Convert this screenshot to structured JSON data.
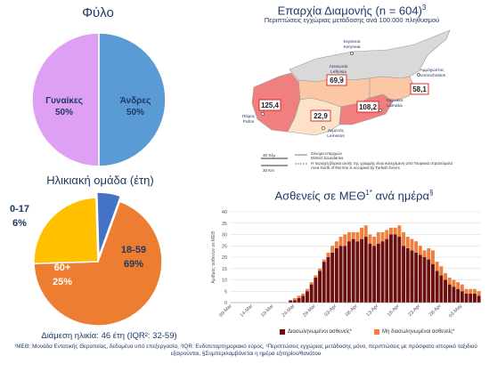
{
  "sex_chart": {
    "title": "Φύλο",
    "chart_data": {
      "type": "pie",
      "title": "Φύλο",
      "slices": [
        {
          "label": "Άνδρες",
          "value": 50,
          "value_label": "50%",
          "color": "#5b9bd5"
        },
        {
          "label": "Γυναίκες",
          "value": 50,
          "value_label": "50%",
          "color": "#dda0f2"
        }
      ]
    }
  },
  "age_chart": {
    "title": "Ηλικιακή ομάδα (έτη)",
    "chart_data": {
      "type": "pie",
      "title": "Ηλικιακή ομάδα (έτη)",
      "slices": [
        {
          "label": "18-59",
          "value": 69,
          "value_label": "69%",
          "color": "#ed7d31"
        },
        {
          "label": "60+",
          "value": 25,
          "value_label": "25%",
          "color": "#ffc000"
        },
        {
          "label": "0-17",
          "value": 6,
          "value_label": "6%",
          "color": "#4472c4"
        }
      ]
    },
    "median_text": "Διάμεση ηλικία: 46 έτη (IQR²: 32-59)"
  },
  "map_panel": {
    "title_main": "Επαρχία Διαμονής (n = 604)",
    "title_sup": "3",
    "subtitle": "Περιπτώσεις εγχώριας μετάδοσης ανά 100.000 πληθυσμού",
    "districts": [
      {
        "name_el": "Κερύνεια",
        "name_en": "Keryneia",
        "value": ""
      },
      {
        "name_el": "Λευκωσία",
        "name_en": "Lefkosia",
        "value": "69,9"
      },
      {
        "name_el": "Αμμόχωστος",
        "name_en": "Ammochostos",
        "value": "58,1"
      },
      {
        "name_el": "Λάρνακα",
        "name_en": "Larnaka",
        "value": "108,2"
      },
      {
        "name_el": "Λεμεσός",
        "name_en": "Lemesos",
        "value": "22,9"
      },
      {
        "name_el": "Πάφος",
        "name_en": "Pafos",
        "value": "125,4"
      }
    ],
    "legend": {
      "boundaries_el": "Σύνορα επαρχιών",
      "boundaries_en": "District boundaries",
      "occupied_el": "Η περιοχή βόρεια αυτής της γραμμής είναι κατεχόμενη από Τουρκικά στρατεύματα",
      "occupied_en": "Area North of this line is occupied by Turkish forces",
      "scale_1": "30 Χλμ",
      "scale_2": "30 Km"
    },
    "colors": {
      "high": "#f08080",
      "mid": "#fbc7a4",
      "low": "#fde2c8",
      "occupied": "#d9d9d9"
    }
  },
  "icu_chart": {
    "title_main": "Ασθενείς σε ΜΕΘ",
    "title_sup1": "1*",
    "title_rest": " ανά ημέρα",
    "title_sup2": "§",
    "chart_data": {
      "type": "bar",
      "stacked": true,
      "ylabel": "Αριθμός ασθενών σε ΜΕΘ",
      "ylim": [
        0,
        40
      ],
      "yticks": [
        0,
        5,
        10,
        15,
        20,
        25,
        30,
        35,
        40
      ],
      "xtick_labels": [
        "09-Mar",
        "14-Mar",
        "19-Mar",
        "24-Mar",
        "29-Mar",
        "03-Apr",
        "08-Apr",
        "13-Apr",
        "18-Apr",
        "23-Apr",
        "28-Apr",
        "03-May"
      ],
      "grid": true,
      "legend_position": "bottom",
      "series": [
        {
          "name": "Διασωληνωμένοι ασθενείς*",
          "color": "#6b0f0f",
          "values": [
            0,
            0,
            0,
            0,
            0,
            0,
            0,
            0,
            0,
            0,
            0,
            0,
            0,
            0,
            1,
            1,
            2,
            3,
            5,
            8,
            11,
            14,
            18,
            20,
            22,
            24,
            25,
            25,
            27,
            28,
            27,
            28,
            29,
            26,
            25,
            26,
            27,
            28,
            30,
            30,
            29,
            25,
            24,
            23,
            22,
            21,
            20,
            19,
            17,
            14,
            12,
            10,
            8,
            7,
            6,
            5,
            4,
            4,
            4,
            3
          ]
        },
        {
          "name": "Μη διασωληνωμένοι ασθενείς*",
          "color": "#f07f3c",
          "values": [
            0,
            0,
            0,
            0,
            0,
            0,
            0,
            0,
            0,
            0,
            0,
            0,
            0,
            0,
            0,
            1,
            1,
            1,
            1,
            1,
            1,
            1,
            1,
            2,
            3,
            3,
            4,
            5,
            4,
            3,
            4,
            5,
            5,
            4,
            4,
            5,
            4,
            4,
            3,
            3,
            5,
            6,
            5,
            5,
            5,
            4,
            3,
            5,
            6,
            4,
            4,
            3,
            3,
            3,
            3,
            3,
            2,
            2,
            2,
            2
          ]
        }
      ]
    }
  },
  "footnote": "¹ΜΕΘ: Μονάδα Εντατικής Θεραπείας, δεδομένα υπό επεξεργασία, ²IQR: Ενδοτεταρτημοριακό εύρος, ³Περιπτώσεις εγχώριας μετάδοσης μόνο, περιπτώσεις με πρόσφατο ιστορικό ταξιδιού εξαιρούνται, §Συμπεριλαμβάνεται η ημέρα εξιτηρίου/θανάτου"
}
